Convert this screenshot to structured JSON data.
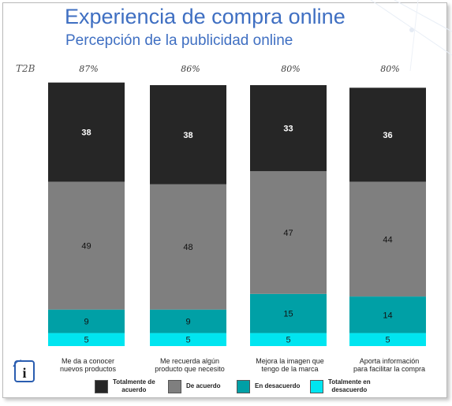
{
  "title": "Experiencia de compra online",
  "subtitle": "Percepción de la publicidad online",
  "t2b_label": "T2B",
  "logo_text": "i",
  "chart_data": {
    "type": "bar",
    "stacked": true,
    "title": "Experiencia de compra online",
    "subtitle": "Percepción de la publicidad online",
    "categories": [
      "Me da a conocer nuevos productos",
      "Me recuerda algún producto que necesito",
      "Mejora la imagen que tengo de la marca",
      "Aporta información para facilitar la compra"
    ],
    "category_label_lines": [
      [
        "Me da a conocer",
        "nuevos productos"
      ],
      [
        "Me recuerda algún",
        "producto que necesito"
      ],
      [
        "Mejora la imagen que",
        "tengo de la marca"
      ],
      [
        "Aporta información",
        "para facilitar la compra"
      ]
    ],
    "t2b": [
      "87%",
      "86%",
      "80%",
      "80%"
    ],
    "series": [
      {
        "name": "Totalmente en desacuerdo",
        "values": [
          5,
          5,
          5,
          5
        ],
        "color": "#00e5f0"
      },
      {
        "name": "En desacuerdo",
        "values": [
          9,
          9,
          15,
          14
        ],
        "color": "#00a0a6"
      },
      {
        "name": "De acuerdo",
        "values": [
          49,
          48,
          47,
          44
        ],
        "color": "#7f7f7f"
      },
      {
        "name": "Totalmente de acuerdo",
        "values": [
          38,
          38,
          33,
          36
        ],
        "color": "#262626"
      }
    ],
    "label_colors": [
      "#222222",
      "#111111",
      "#111111",
      "#ffffff"
    ],
    "ylim": [
      0,
      100
    ],
    "grid": false,
    "legend_position": "bottom"
  },
  "legend": {
    "items": [
      {
        "label_lines": [
          "Totalmente de",
          "acuerdo"
        ],
        "color": "#262626"
      },
      {
        "label_lines": [
          "De acuerdo"
        ],
        "color": "#7f7f7f"
      },
      {
        "label_lines": [
          "En desacuerdo"
        ],
        "color": "#00a0a6"
      },
      {
        "label_lines": [
          "Totalmente en",
          "desacuerdo"
        ],
        "color": "#00e5f0"
      }
    ]
  }
}
